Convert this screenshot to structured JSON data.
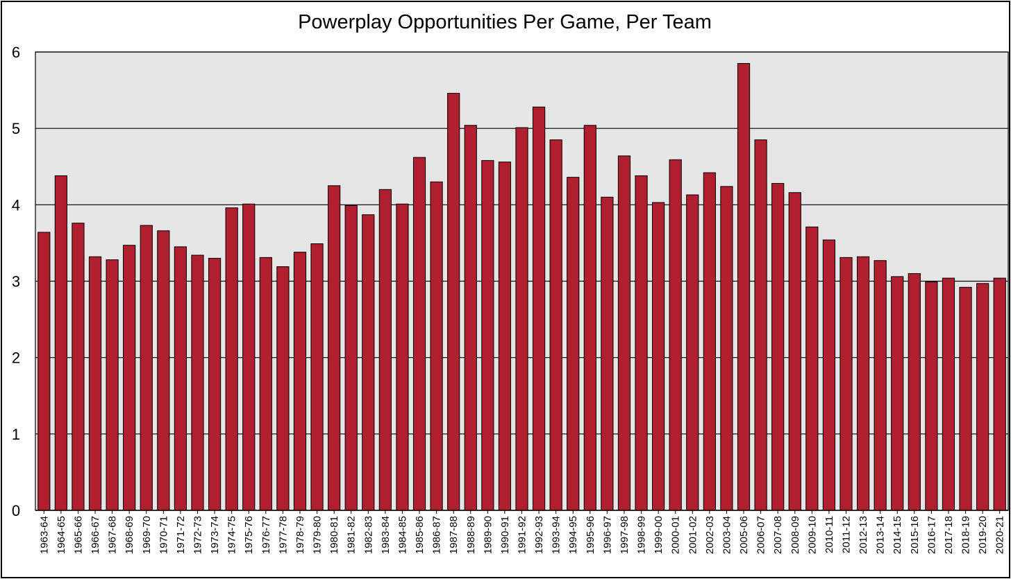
{
  "chart_data": {
    "type": "bar",
    "title": "Powerplay Opportunities Per Game, Per Team",
    "xlabel": "",
    "ylabel": "",
    "ylim": [
      0,
      6
    ],
    "yticks": [
      0,
      1,
      2,
      3,
      4,
      5,
      6
    ],
    "grid": true,
    "legend": "none",
    "colors": {
      "bar_fill": "#B01F2E",
      "bar_stroke": "#000000",
      "plot_background": "#E6E6E6",
      "gridline": "#000000"
    },
    "categories": [
      "1963-64",
      "1964-65",
      "1965-66",
      "1966-67",
      "1967-68",
      "1968-69",
      "1969-70",
      "1970-71",
      "1971-72",
      "1972-73",
      "1973-74",
      "1974-75",
      "1975-76",
      "1976-77",
      "1977-78",
      "1978-79",
      "1979-80",
      "1980-81",
      "1981-82",
      "1982-83",
      "1983-84",
      "1984-85",
      "1985-86",
      "1986-87",
      "1987-88",
      "1988-89",
      "1989-90",
      "1990-91",
      "1991-92",
      "1992-93",
      "1993-94",
      "1994-95",
      "1995-96",
      "1996-97",
      "1997-98",
      "1998-99",
      "1999-00",
      "2000-01",
      "2001-02",
      "2002-03",
      "2003-04",
      "2005-06",
      "2006-07",
      "2007-08",
      "2008-09",
      "2009-10",
      "2010-11",
      "2011-12",
      "2012-13",
      "2013-14",
      "2014-15",
      "2015-16",
      "2016-17",
      "2017-18",
      "2018-19",
      "2019-20",
      "2020-21"
    ],
    "values": [
      3.64,
      4.38,
      3.76,
      3.32,
      3.28,
      3.47,
      3.73,
      3.66,
      3.45,
      3.34,
      3.3,
      3.96,
      4.01,
      3.31,
      3.19,
      3.38,
      3.49,
      4.25,
      3.99,
      3.87,
      4.2,
      4.01,
      4.62,
      4.3,
      5.46,
      5.04,
      4.58,
      4.56,
      5.01,
      5.28,
      4.85,
      4.36,
      5.04,
      4.1,
      4.64,
      4.38,
      4.03,
      4.59,
      4.13,
      4.42,
      4.24,
      5.85,
      4.85,
      4.28,
      4.16,
      3.71,
      3.54,
      3.31,
      3.32,
      3.27,
      3.06,
      3.1,
      2.99,
      3.04,
      2.92,
      2.97,
      3.04
    ]
  }
}
